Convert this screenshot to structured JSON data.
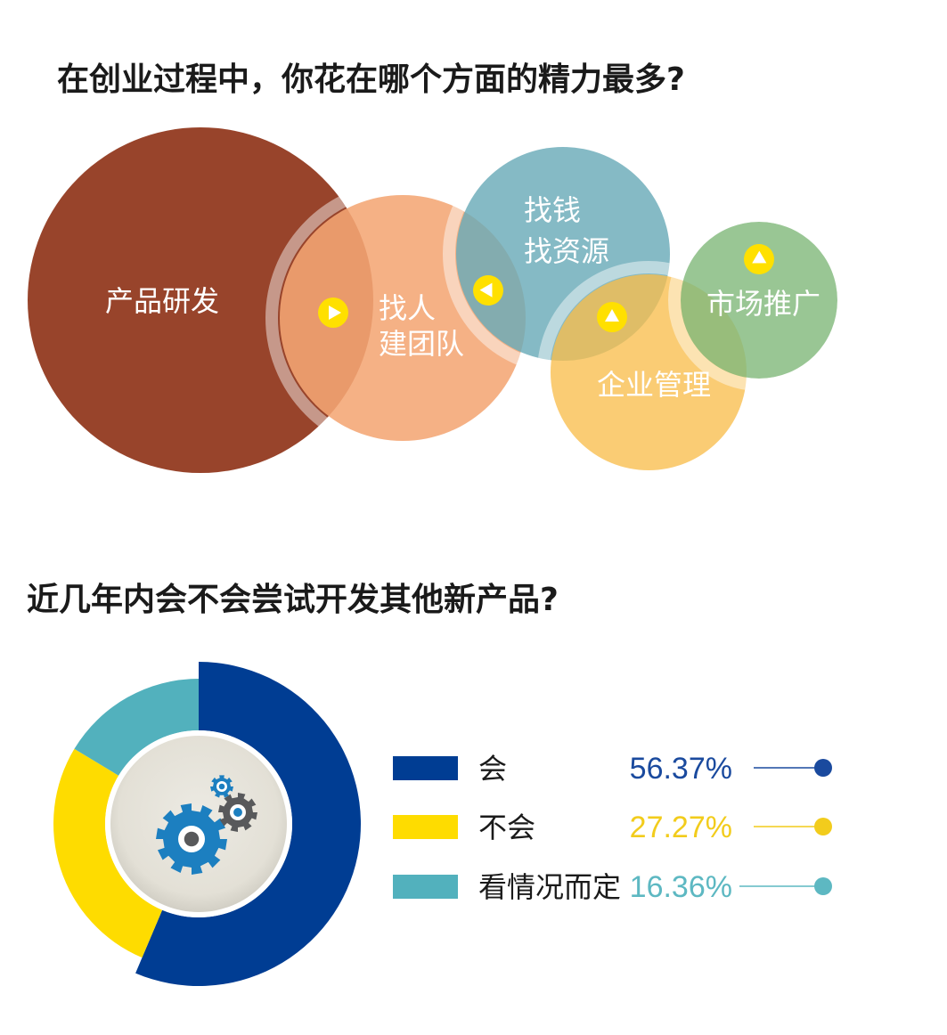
{
  "section1": {
    "title": "在创业过程中，你花在哪个方面的精力最多?",
    "bubbles": [
      {
        "lines": [
          "产品研发"
        ],
        "color": "#98442b"
      },
      {
        "lines": [
          "找人",
          "建团队"
        ],
        "color": "#f4a674"
      },
      {
        "lines": [
          "找钱",
          "找资源"
        ],
        "color": "#6aabb8"
      },
      {
        "lines": [
          "企业管理"
        ],
        "color": "#f9be4d"
      },
      {
        "lines": [
          "市场推广"
        ],
        "color": "#83b97c"
      }
    ],
    "arrow_color": "#ffe000"
  },
  "section2": {
    "title": "近几年内会不会尝试开发其他新产品?",
    "chart_data": {
      "type": "pie",
      "categories": [
        "会",
        "不会",
        "看情况而定"
      ],
      "values": [
        56.37,
        27.27,
        16.36
      ],
      "value_labels": [
        "56.37%",
        "27.27%",
        "16.36%"
      ],
      "colors": [
        "#003d93",
        "#fedc00",
        "#52b1bd"
      ],
      "label_colors": [
        "#1a4a9e",
        "#f2cc1c",
        "#5db8c2"
      ],
      "legend_placement": "right"
    },
    "gear_icons": [
      "gear-icon",
      "gear-icon",
      "gear-icon"
    ]
  }
}
